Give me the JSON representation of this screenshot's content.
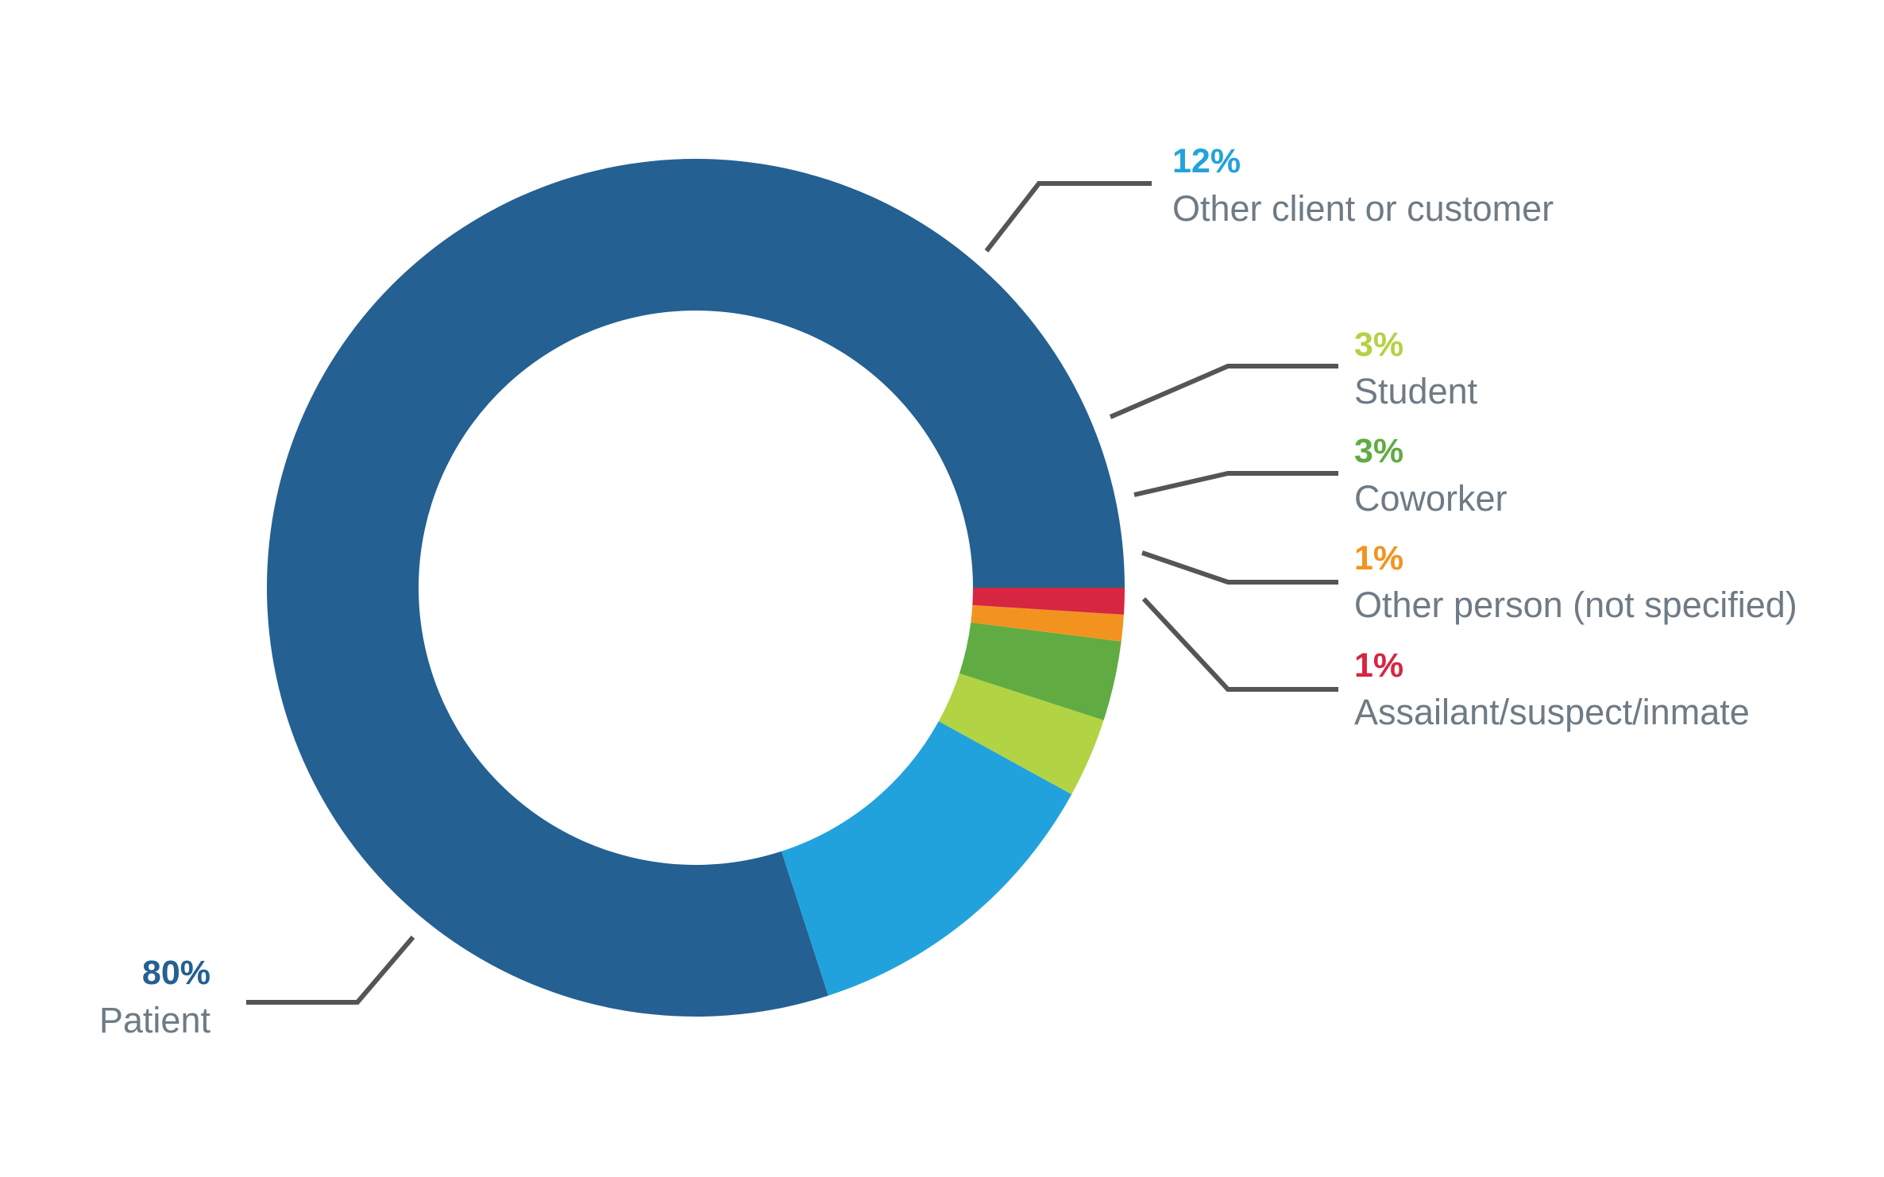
{
  "chart_data": {
    "type": "pie",
    "variant": "donut",
    "title": "",
    "start_angle": "3 o'clock, counter-clockwise",
    "slices": [
      {
        "label": "Patient",
        "percent_label": "80%",
        "value": 80,
        "color": "#246092"
      },
      {
        "label": "Other client or customer",
        "percent_label": "12%",
        "value": 12,
        "color": "#22a2dc"
      },
      {
        "label": "Student",
        "percent_label": "3%",
        "value": 3,
        "color": "#b2d343"
      },
      {
        "label": "Coworker",
        "percent_label": "3%",
        "value": 3,
        "color": "#60ac43"
      },
      {
        "label": "Other person (not specified)",
        "percent_label": "1%",
        "value": 1,
        "color": "#f3931f"
      },
      {
        "label": "Assailant/suspect/inmate",
        "percent_label": "1%",
        "value": 1,
        "color": "#d62642"
      }
    ],
    "label_text_color": "#6e7b85",
    "leader_line_color": "#555555"
  }
}
